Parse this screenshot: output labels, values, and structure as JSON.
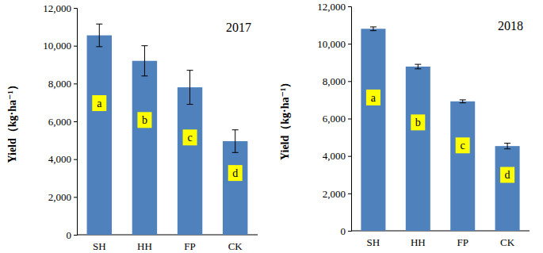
{
  "chart_data": [
    {
      "type": "bar",
      "title": "2017",
      "y_label": "Yield（kg·ha⁻¹）",
      "categories": [
        "SH",
        "HH",
        "FP",
        "CK"
      ],
      "values": [
        10550,
        9200,
        7800,
        4950
      ],
      "errors": [
        600,
        800,
        900,
        600
      ],
      "annotations": [
        "a",
        "b",
        "c",
        "d"
      ],
      "color": "#4f81bd",
      "ylim": [
        0,
        12000
      ],
      "yticks": [
        0,
        {
          "value": 2000,
          "label": "2,000"
        },
        {
          "value": 4000,
          "label": "4,000"
        },
        {
          "value": 6000,
          "label": "6,000"
        },
        {
          "value": 8000,
          "label": "8,000"
        },
        {
          "value": 10000,
          "label": "10,000"
        },
        {
          "value": 12000,
          "label": "12,000"
        }
      ],
      "grid": false
    },
    {
      "type": "bar",
      "title": "2018",
      "y_label": "Yield（kg·ha⁻¹）",
      "categories": [
        "SH",
        "HH",
        "FP",
        "CK"
      ],
      "values": [
        10800,
        8780,
        6920,
        4530
      ],
      "errors": [
        100,
        120,
        80,
        150
      ],
      "annotations": [
        "a",
        "b",
        "c",
        "d"
      ],
      "color": "#4f81bd",
      "ylim": [
        0,
        12000
      ],
      "yticks": [
        0,
        {
          "value": 2000,
          "label": "2,000"
        },
        {
          "value": 4000,
          "label": "4,000"
        },
        {
          "value": 6000,
          "label": "6,000"
        },
        {
          "value": 8000,
          "label": "8,000"
        },
        {
          "value": 10000,
          "label": "10,000"
        },
        {
          "value": 12000,
          "label": "12,000"
        }
      ],
      "grid": false
    }
  ]
}
